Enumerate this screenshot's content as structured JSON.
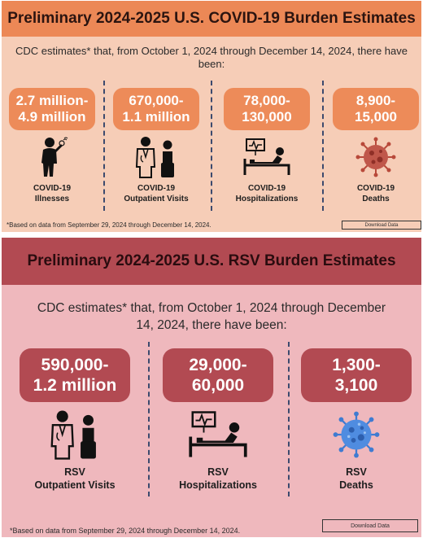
{
  "covid": {
    "title": "Preliminary 2024-2025 U.S. COVID-19 Burden Estimates",
    "intro": "CDC estimates* that, from October 1, 2024 through December 14, 2024, there have been:",
    "stats": [
      {
        "value_line1": "2.7 million-",
        "value_line2": "4.9 million",
        "label_line1": "COVID-19",
        "label_line2": "Illnesses",
        "icon": "sick-person-icon"
      },
      {
        "value_line1": "670,000-",
        "value_line2": "1.1 million",
        "label_line1": "COVID-19",
        "label_line2": "Outpatient Visits",
        "icon": "doctor-patient-icon"
      },
      {
        "value_line1": "78,000-",
        "value_line2": "130,000",
        "label_line1": "COVID-19",
        "label_line2": "Hospitalizations",
        "icon": "hospital-bed-icon"
      },
      {
        "value_line1": "8,900-",
        "value_line2": "15,000",
        "label_line1": "COVID-19",
        "label_line2": "Deaths",
        "icon": "virus-icon"
      }
    ],
    "footnote": "*Based on data from September 29, 2024 through December 14, 2024.",
    "download_label": "Download Data",
    "colors": {
      "banner": "#ec8856",
      "pill": "#ed8b59",
      "background": "#f6cdb7",
      "virus": "#b8493a"
    }
  },
  "rsv": {
    "title": "Preliminary 2024-2025 U.S. RSV Burden Estimates",
    "intro_line1": "CDC estimates* that, from October 1, 2024 through December",
    "intro_line2": "14, 2024, there have been:",
    "stats": [
      {
        "value_line1": "590,000-",
        "value_line2": "1.2 million",
        "label_line1": "RSV",
        "label_line2": "Outpatient Visits",
        "icon": "doctor-patient-icon"
      },
      {
        "value_line1": "29,000-",
        "value_line2": "60,000",
        "label_line1": "RSV",
        "label_line2": "Hospitalizations",
        "icon": "hospital-bed-icon"
      },
      {
        "value_line1": "1,300-",
        "value_line2": "3,100",
        "label_line1": "RSV",
        "label_line2": "Deaths",
        "icon": "virus-icon"
      }
    ],
    "footnote": "*Based on data from September 29, 2024 through December 14, 2024.",
    "download_label": "Download Data",
    "colors": {
      "banner": "#b24a52",
      "pill": "#b24a52",
      "background": "#efb8bd",
      "virus": "#3f7bd1"
    }
  }
}
